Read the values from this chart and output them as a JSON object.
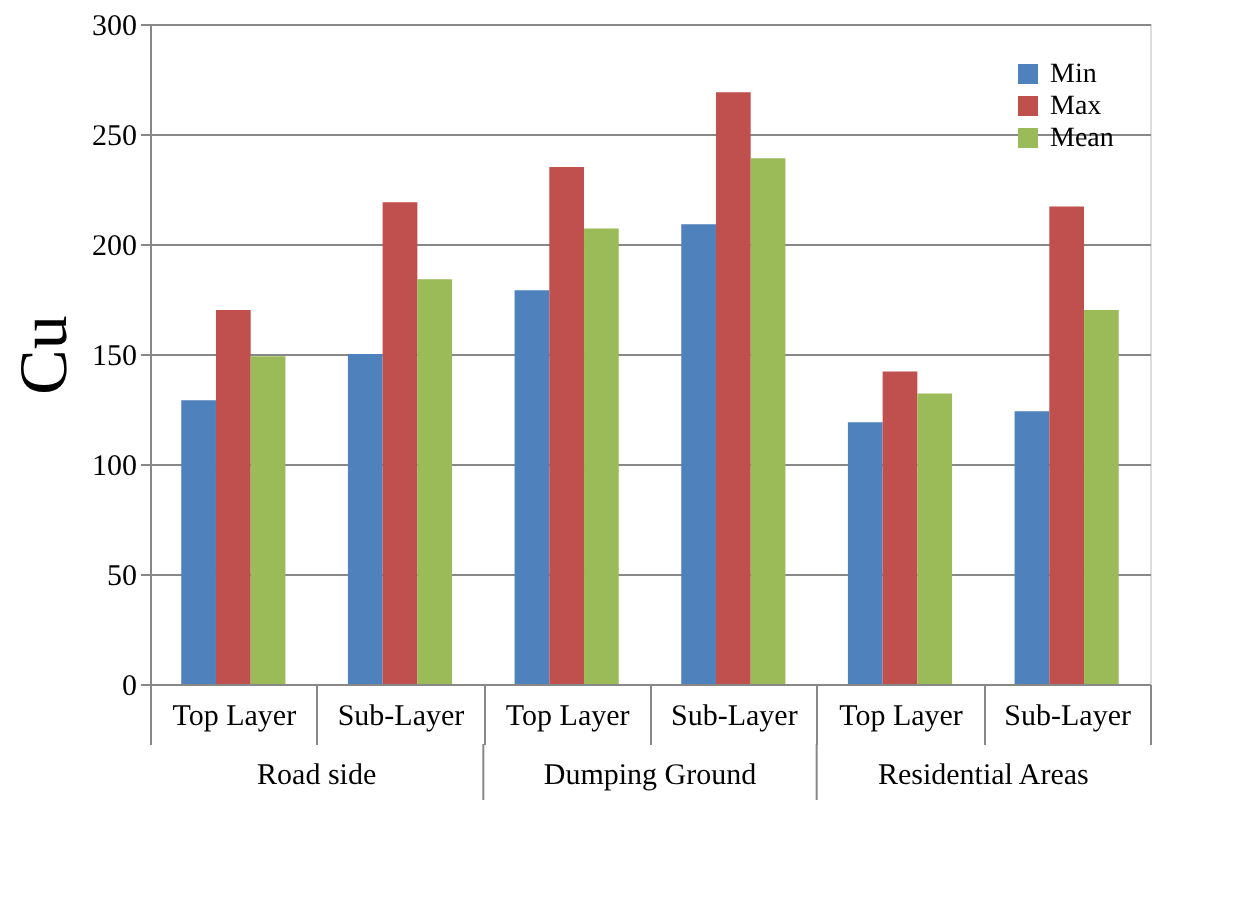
{
  "chart_data": {
    "type": "bar",
    "ylabel": "Cu",
    "categories": [
      "Top Layer",
      "Sub-Layer",
      "Top Layer",
      "Sub-Layer",
      "Top Layer",
      "Sub-Layer"
    ],
    "series": [
      {
        "name": "Min",
        "color": "#4f81bd",
        "values": [
          129,
          150,
          179,
          209,
          119,
          124
        ]
      },
      {
        "name": "Max",
        "color": "#c0504d",
        "values": [
          170,
          219,
          235,
          269,
          142,
          217
        ]
      },
      {
        "name": "Mean",
        "color": "#9bbb59",
        "values": [
          149,
          184,
          207,
          239,
          132,
          170
        ]
      }
    ],
    "annotations": [
      "Road side",
      "Dumping Ground",
      "Residential Areas"
    ],
    "ylim": [
      0,
      300
    ],
    "yticks": [
      0,
      50,
      100,
      150,
      200,
      250,
      300
    ],
    "grid": "y",
    "legend": "top right"
  }
}
